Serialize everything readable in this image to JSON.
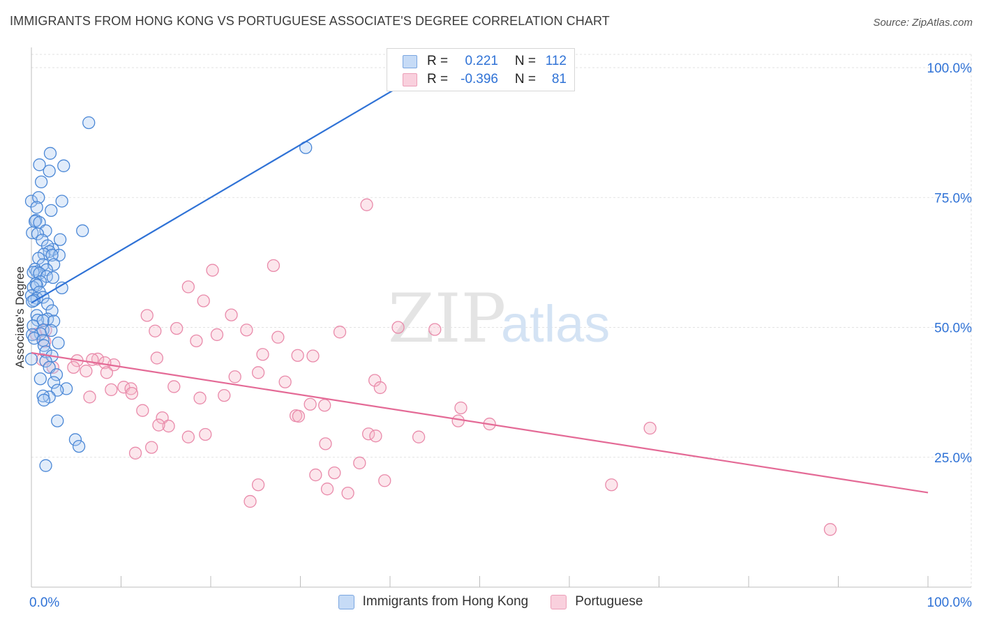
{
  "header": {
    "title": "IMMIGRANTS FROM HONG KONG VS PORTUGUESE ASSOCIATE'S DEGREE CORRELATION CHART",
    "source": "Source: ZipAtlas.com"
  },
  "watermark": {
    "zip": "ZIP",
    "atlas": "atlas"
  },
  "legend": {
    "rows": [
      {
        "r_label": "R =",
        "r_value": "0.221",
        "n_label": "N =",
        "n_value": "112",
        "color": "#a8c8f0"
      },
      {
        "r_label": "R =",
        "r_value": "-0.396",
        "n_label": "N =",
        "n_value": "81",
        "color": "#f5b6c9"
      }
    ]
  },
  "colors": {
    "blue_fill": "#a8c8f0",
    "blue_stroke": "#4a87d6",
    "blue_line": "#2f72d6",
    "pink_fill": "#f5b6c9",
    "pink_stroke": "#e98aaa",
    "pink_line": "#e46a96",
    "tick_label": "#2f72d6",
    "grid": "#e2e2e2"
  },
  "chart_data": {
    "type": "scatter",
    "title": "IMMIGRANTS FROM HONG KONG VS PORTUGUESE ASSOCIATE'S DEGREE CORRELATION CHART",
    "xlabel": "",
    "ylabel": "Associate's Degree",
    "xlim": [
      0,
      100
    ],
    "ylim": [
      0,
      104
    ],
    "x_tick_labels": [
      "0.0%",
      "100.0%"
    ],
    "y_ticks": [
      25,
      50,
      75,
      100
    ],
    "y_tick_labels": [
      "25.0%",
      "50.0%",
      "75.0%",
      "100.0%"
    ],
    "grid": true,
    "legend_position": "bottom-center",
    "series": [
      {
        "name": "Immigrants from Hong Kong",
        "color": "#a8c8f0",
        "r": 0.221,
        "n": 112,
        "trend": {
          "x": [
            0.0,
            40.7
          ],
          "y": [
            54.7,
            96.0
          ]
        },
        "points": [
          [
            6.4,
            89.4
          ],
          [
            30.6,
            84.6
          ],
          [
            2.1,
            83.5
          ],
          [
            0.9,
            81.3
          ],
          [
            3.6,
            81.1
          ],
          [
            2.0,
            80.1
          ],
          [
            1.1,
            78.0
          ],
          [
            0.0,
            74.3
          ],
          [
            3.4,
            74.3
          ],
          [
            0.8,
            75.0
          ],
          [
            0.6,
            73.1
          ],
          [
            2.2,
            72.5
          ],
          [
            0.5,
            70.6
          ],
          [
            0.4,
            70.4
          ],
          [
            0.9,
            70.2
          ],
          [
            1.6,
            68.6
          ],
          [
            5.7,
            68.6
          ],
          [
            0.1,
            68.2
          ],
          [
            0.7,
            68.0
          ],
          [
            3.2,
            66.9
          ],
          [
            1.2,
            66.8
          ],
          [
            2.4,
            65.0
          ],
          [
            1.8,
            65.7
          ],
          [
            2.0,
            64.6
          ],
          [
            1.4,
            64.1
          ],
          [
            3.1,
            63.9
          ],
          [
            2.3,
            63.9
          ],
          [
            0.8,
            63.3
          ],
          [
            1.3,
            62.1
          ],
          [
            2.5,
            62.1
          ],
          [
            0.4,
            61.2
          ],
          [
            1.7,
            61.1
          ],
          [
            0.6,
            60.7
          ],
          [
            0.2,
            60.6
          ],
          [
            0.9,
            60.4
          ],
          [
            1.7,
            59.8
          ],
          [
            2.4,
            59.6
          ],
          [
            1.0,
            58.8
          ],
          [
            0.5,
            58.4
          ],
          [
            0.2,
            57.7
          ],
          [
            0.6,
            58.1
          ],
          [
            3.4,
            57.6
          ],
          [
            0.9,
            56.8
          ],
          [
            0.0,
            56.1
          ],
          [
            0.6,
            55.6
          ],
          [
            1.3,
            55.8
          ],
          [
            0.3,
            55.2
          ],
          [
            0.1,
            55.0
          ],
          [
            1.8,
            54.5
          ],
          [
            2.3,
            53.2
          ],
          [
            0.6,
            52.3
          ],
          [
            1.8,
            51.6
          ],
          [
            0.7,
            51.4
          ],
          [
            1.3,
            51.3
          ],
          [
            2.5,
            51.2
          ],
          [
            0.2,
            50.3
          ],
          [
            1.3,
            49.5
          ],
          [
            2.2,
            49.4
          ],
          [
            1.0,
            48.8
          ],
          [
            0.1,
            48.6
          ],
          [
            0.3,
            47.9
          ],
          [
            1.3,
            47.5
          ],
          [
            3.0,
            47.0
          ],
          [
            1.4,
            46.5
          ],
          [
            1.6,
            45.3
          ],
          [
            2.3,
            44.5
          ],
          [
            1.6,
            43.5
          ],
          [
            0.0,
            43.9
          ],
          [
            2.0,
            42.3
          ],
          [
            2.8,
            40.9
          ],
          [
            2.5,
            39.4
          ],
          [
            1.0,
            40.1
          ],
          [
            3.9,
            38.2
          ],
          [
            2.9,
            37.9
          ],
          [
            2.0,
            36.6
          ],
          [
            1.3,
            36.8
          ],
          [
            1.4,
            36.0
          ],
          [
            2.9,
            32.0
          ],
          [
            4.9,
            28.4
          ],
          [
            5.3,
            27.1
          ],
          [
            1.6,
            23.4
          ]
        ]
      },
      {
        "name": "Portuguese",
        "color": "#f5b6c9",
        "r": -0.396,
        "n": 81,
        "trend": {
          "x": [
            0.0,
            100.0
          ],
          "y": [
            45.1,
            18.2
          ]
        },
        "points": [
          [
            37.4,
            73.6
          ],
          [
            27.0,
            61.9
          ],
          [
            20.2,
            61.0
          ],
          [
            17.5,
            57.8
          ],
          [
            19.2,
            55.1
          ],
          [
            22.3,
            52.4
          ],
          [
            12.9,
            52.3
          ],
          [
            40.9,
            50.0
          ],
          [
            45.0,
            49.6
          ],
          [
            34.4,
            49.1
          ],
          [
            13.8,
            49.3
          ],
          [
            16.2,
            49.8
          ],
          [
            24.0,
            49.5
          ],
          [
            20.7,
            48.6
          ],
          [
            27.5,
            48.1
          ],
          [
            18.4,
            47.4
          ],
          [
            1.6,
            49.5
          ],
          [
            0.5,
            48.7
          ],
          [
            1.5,
            47.3
          ],
          [
            25.8,
            44.8
          ],
          [
            29.7,
            44.6
          ],
          [
            31.4,
            44.5
          ],
          [
            14.0,
            44.1
          ],
          [
            7.4,
            43.9
          ],
          [
            6.8,
            43.8
          ],
          [
            9.2,
            42.8
          ],
          [
            1.2,
            43.8
          ],
          [
            5.1,
            43.6
          ],
          [
            8.2,
            43.2
          ],
          [
            4.7,
            42.3
          ],
          [
            2.4,
            42.3
          ],
          [
            6.1,
            41.6
          ],
          [
            8.4,
            41.3
          ],
          [
            25.3,
            41.3
          ],
          [
            22.7,
            40.5
          ],
          [
            38.3,
            39.8
          ],
          [
            28.3,
            39.5
          ],
          [
            10.3,
            38.5
          ],
          [
            11.1,
            38.2
          ],
          [
            38.9,
            38.4
          ],
          [
            8.9,
            38.0
          ],
          [
            15.9,
            38.6
          ],
          [
            11.2,
            37.3
          ],
          [
            6.5,
            36.6
          ],
          [
            18.8,
            36.4
          ],
          [
            21.5,
            36.9
          ],
          [
            31.1,
            35.2
          ],
          [
            32.7,
            35.0
          ],
          [
            12.4,
            34.0
          ],
          [
            47.9,
            34.5
          ],
          [
            14.6,
            32.6
          ],
          [
            29.5,
            33.0
          ],
          [
            29.8,
            32.9
          ],
          [
            47.6,
            32.0
          ],
          [
            51.1,
            31.4
          ],
          [
            15.3,
            31.0
          ],
          [
            14.2,
            31.2
          ],
          [
            69.0,
            30.6
          ],
          [
            19.4,
            29.4
          ],
          [
            17.5,
            28.9
          ],
          [
            37.6,
            29.5
          ],
          [
            38.4,
            29.1
          ],
          [
            43.2,
            28.9
          ],
          [
            32.8,
            27.6
          ],
          [
            13.4,
            26.9
          ],
          [
            11.6,
            25.8
          ],
          [
            36.6,
            23.9
          ],
          [
            31.7,
            21.6
          ],
          [
            33.8,
            22.0
          ],
          [
            39.4,
            20.5
          ],
          [
            25.3,
            19.7
          ],
          [
            64.7,
            19.7
          ],
          [
            33.0,
            18.9
          ],
          [
            35.3,
            18.1
          ],
          [
            24.4,
            16.5
          ],
          [
            89.1,
            11.1
          ]
        ]
      }
    ]
  },
  "bottom_legend": [
    {
      "label": "Immigrants from Hong Kong",
      "color": "#a8c8f0"
    },
    {
      "label": "Portuguese",
      "color": "#f5b6c9"
    }
  ]
}
